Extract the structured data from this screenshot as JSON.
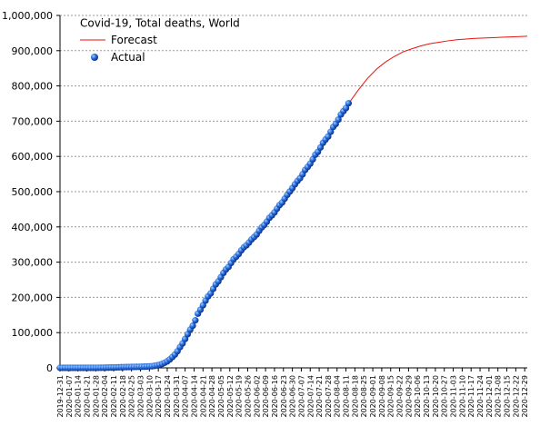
{
  "chart_data": {
    "type": "line",
    "title": "Covid-19, Total deaths, World",
    "xlim": [
      "2019-12-31",
      "2020-12-31"
    ],
    "ylim": [
      0,
      1000000
    ],
    "yticks": [
      0,
      {
        "value": 100000,
        "label": "100,000"
      },
      {
        "value": 200000,
        "label": "200,000"
      },
      {
        "value": 300000,
        "label": "300,000"
      },
      {
        "value": 400000,
        "label": "400,000"
      },
      {
        "value": 500000,
        "label": "500,000"
      },
      {
        "value": 600000,
        "label": "600,000"
      },
      {
        "value": 700000,
        "label": "700,000"
      },
      {
        "value": 800000,
        "label": "800,000"
      },
      {
        "value": 900000,
        "label": "900,000"
      },
      {
        "value": 1000000,
        "label": "1,000,000"
      }
    ],
    "xticks": [
      "2019-12-31",
      "2020-01-07",
      "2020-01-14",
      "2020-01-21",
      "2020-01-28",
      "2020-02-04",
      "2020-02-11",
      "2020-02-18",
      "2020-02-25",
      "2020-03-03",
      "2020-03-10",
      "2020-03-17",
      "2020-03-24",
      "2020-03-31",
      "2020-04-07",
      "2020-04-14",
      "2020-04-21",
      "2020-04-28",
      "2020-05-05",
      "2020-05-12",
      "2020-05-19",
      "2020-05-26",
      "2020-06-02",
      "2020-06-09",
      "2020-06-16",
      "2020-06-23",
      "2020-06-30",
      "2020-07-07",
      "2020-07-14",
      "2020-07-21",
      "2020-07-28",
      "2020-08-04",
      "2020-08-11",
      "2020-08-18",
      "2020-08-25",
      "2020-09-01",
      "2020-09-08",
      "2020-09-15",
      "2020-09-22",
      "2020-09-29",
      "2020-10-06",
      "2020-10-13",
      "2020-10-20",
      "2020-10-27",
      "2020-11-03",
      "2020-11-10",
      "2020-11-17",
      "2020-11-24",
      "2020-12-01",
      "2020-12-08",
      "2020-12-15",
      "2020-12-22",
      "2020-12-29"
    ],
    "grid": true,
    "legend": "top-left",
    "series": [
      {
        "name": "Forecast",
        "color": "#e8120c",
        "marker": "line",
        "x": [
          "2020-08-14",
          "2020-08-21",
          "2020-08-28",
          "2020-09-04",
          "2020-09-11",
          "2020-09-18",
          "2020-09-25",
          "2020-10-02",
          "2020-10-09",
          "2020-10-16",
          "2020-10-23",
          "2020-10-30",
          "2020-11-06",
          "2020-11-13",
          "2020-11-20",
          "2020-11-27",
          "2020-12-04",
          "2020-12-11",
          "2020-12-18",
          "2020-12-25",
          "2020-12-31"
        ],
        "values": [
          755000,
          790000,
          822000,
          848000,
          868000,
          884000,
          897000,
          906000,
          914000,
          920000,
          924000,
          928000,
          931000,
          933000,
          935000,
          936000,
          937000,
          938000,
          939000,
          940000,
          941000
        ]
      },
      {
        "name": "Actual",
        "color": "#1f5fd6",
        "marker": "dot",
        "x": [
          "2019-12-31",
          "2020-01-02",
          "2020-01-04",
          "2020-01-06",
          "2020-01-08",
          "2020-01-10",
          "2020-01-12",
          "2020-01-14",
          "2020-01-16",
          "2020-01-18",
          "2020-01-20",
          "2020-01-22",
          "2020-01-24",
          "2020-01-26",
          "2020-01-28",
          "2020-01-30",
          "2020-02-01",
          "2020-02-03",
          "2020-02-05",
          "2020-02-07",
          "2020-02-09",
          "2020-02-11",
          "2020-02-13",
          "2020-02-15",
          "2020-02-17",
          "2020-02-19",
          "2020-02-21",
          "2020-02-23",
          "2020-02-25",
          "2020-02-27",
          "2020-02-29",
          "2020-03-02",
          "2020-03-04",
          "2020-03-06",
          "2020-03-08",
          "2020-03-10",
          "2020-03-12",
          "2020-03-14",
          "2020-03-16",
          "2020-03-18",
          "2020-03-20",
          "2020-03-22",
          "2020-03-24",
          "2020-03-26",
          "2020-03-28",
          "2020-03-30",
          "2020-04-01",
          "2020-04-03",
          "2020-04-05",
          "2020-04-07",
          "2020-04-09",
          "2020-04-11",
          "2020-04-13",
          "2020-04-15",
          "2020-04-17",
          "2020-04-19",
          "2020-04-21",
          "2020-04-23",
          "2020-04-25",
          "2020-04-27",
          "2020-04-29",
          "2020-05-01",
          "2020-05-03",
          "2020-05-05",
          "2020-05-07",
          "2020-05-09",
          "2020-05-11",
          "2020-05-13",
          "2020-05-15",
          "2020-05-17",
          "2020-05-19",
          "2020-05-21",
          "2020-05-23",
          "2020-05-25",
          "2020-05-27",
          "2020-05-29",
          "2020-05-31",
          "2020-06-02",
          "2020-06-04",
          "2020-06-06",
          "2020-06-08",
          "2020-06-10",
          "2020-06-12",
          "2020-06-14",
          "2020-06-16",
          "2020-06-18",
          "2020-06-20",
          "2020-06-22",
          "2020-06-24",
          "2020-06-26",
          "2020-06-28",
          "2020-06-30",
          "2020-07-02",
          "2020-07-04",
          "2020-07-06",
          "2020-07-08",
          "2020-07-10",
          "2020-07-12",
          "2020-07-14",
          "2020-07-16",
          "2020-07-18",
          "2020-07-20",
          "2020-07-22",
          "2020-07-24",
          "2020-07-26",
          "2020-07-28",
          "2020-07-30",
          "2020-08-01",
          "2020-08-03",
          "2020-08-05",
          "2020-08-07",
          "2020-08-09",
          "2020-08-11",
          "2020-08-13"
        ],
        "values": [
          0,
          0,
          0,
          0,
          0,
          0,
          1,
          1,
          2,
          3,
          4,
          17,
          41,
          80,
          132,
          213,
          304,
          425,
          563,
          722,
          908,
          1113,
          1383,
          1666,
          1870,
          2122,
          2248,
          2469,
          2708,
          2801,
          2941,
          3085,
          3254,
          3460,
          3803,
          4262,
          4720,
          5736,
          7120,
          8733,
          11183,
          14652,
          18620,
          23970,
          30860,
          37820,
          47190,
          58940,
          69460,
          81950,
          95600,
          108500,
          119700,
          135000,
          153800,
          165000,
          177600,
          190900,
          203100,
          211400,
          224300,
          236900,
          245500,
          257300,
          269600,
          279300,
          286400,
          297700,
          308500,
          315600,
          323400,
          333600,
          342100,
          347800,
          355600,
          364500,
          371100,
          378400,
          389100,
          398600,
          405600,
          414900,
          425700,
          432900,
          441200,
          451700,
          462100,
          469100,
          480000,
          491000,
          500400,
          510100,
          520800,
          530300,
          538300,
          549200,
          561600,
          570200,
          579500,
          591700,
          604900,
          612900,
          625400,
          638600,
          648100,
          656300,
          669800,
          683600,
          692000,
          704300,
          718900,
          728500,
          737200,
          750800
        ]
      }
    ]
  }
}
